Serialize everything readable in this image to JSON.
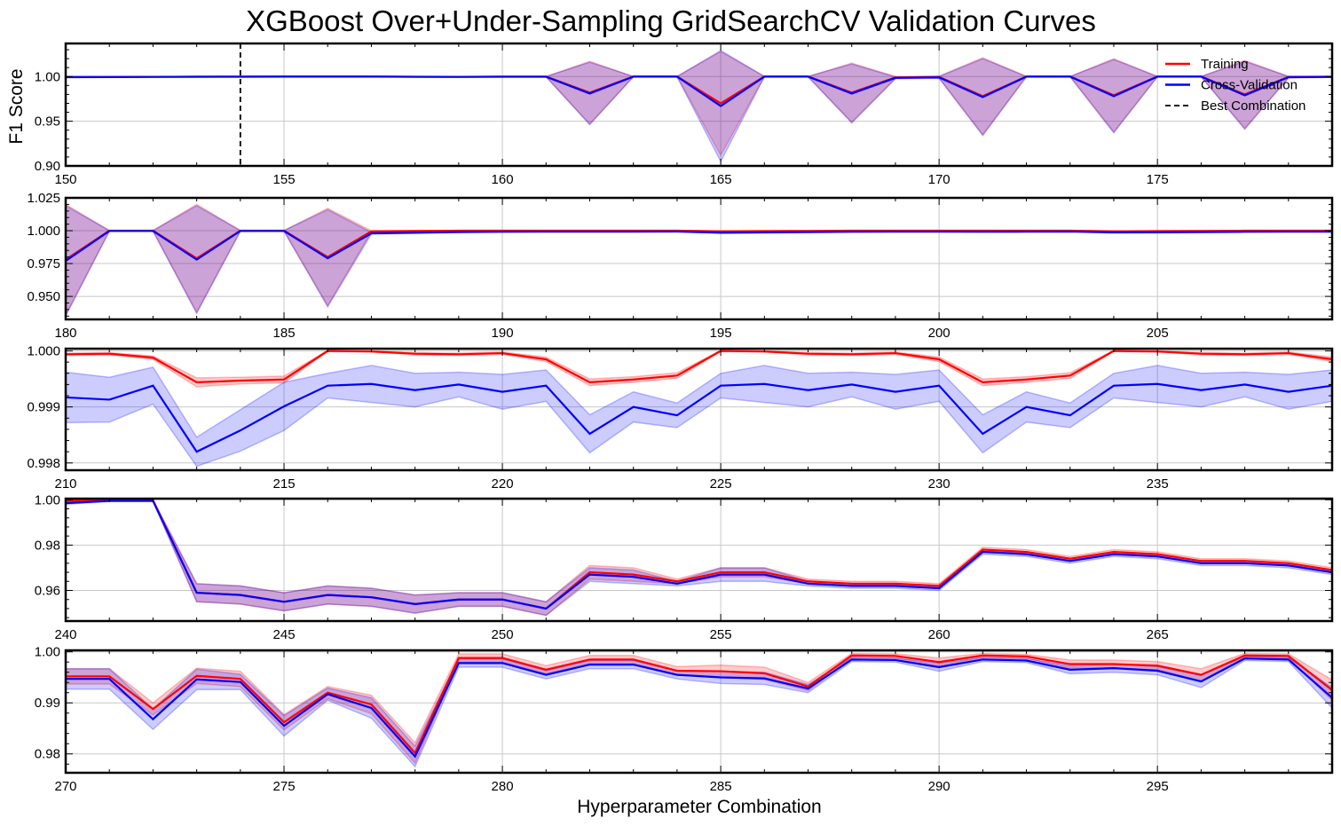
{
  "title": "XGBoost Over+Under-Sampling GridSearchCV Validation Curves",
  "xlabel": "Hyperparameter Combination",
  "ylabel": "F1 Score",
  "legend": [
    {
      "label": "Training",
      "color": "#ff0000",
      "style": "solid"
    },
    {
      "label": "Cross-Validation",
      "color": "#0000ff",
      "style": "solid"
    },
    {
      "label": "Best Combination",
      "color": "#000000",
      "style": "dashed"
    }
  ],
  "colors": {
    "train": "#ff0000",
    "cv": "#0000ff",
    "best": "#000000"
  },
  "chart_data": [
    {
      "type": "line",
      "xlim": [
        150,
        179
      ],
      "ylim": [
        0.9,
        1.037
      ],
      "xticks": [
        150,
        155,
        160,
        165,
        170,
        175
      ],
      "yticks": [
        0.9,
        0.95,
        1.0
      ],
      "ytick_labels": [
        "0.90",
        "0.95",
        "1.00"
      ],
      "best_combination": 154,
      "legend_position": "top-right",
      "x": [
        150,
        151,
        152,
        153,
        154,
        155,
        156,
        157,
        158,
        159,
        160,
        161,
        162,
        163,
        164,
        165,
        166,
        167,
        168,
        169,
        170,
        171,
        172,
        173,
        174,
        175,
        176,
        177,
        178,
        179
      ],
      "series": [
        {
          "name": "Training",
          "values": [
            0.9995,
            0.9996,
            0.9997,
            0.9998,
            0.9999,
            1.0,
            1.0,
            1.0,
            0.9998,
            0.9997,
            0.9999,
            0.9999,
            0.982,
            1.0,
            1.0,
            0.97,
            1.0,
            1.0,
            0.982,
            0.999,
            0.9995,
            0.978,
            1.0,
            1.0,
            0.979,
            1.0,
            1.0,
            0.98,
            0.9995,
            0.9998
          ],
          "std": [
            0.0002,
            0.0002,
            0.0002,
            0.0002,
            0.0002,
            0.0001,
            0.0001,
            0.0001,
            0.0002,
            0.0002,
            0.0001,
            0.0001,
            0.035,
            0.0001,
            0.0001,
            0.058,
            0.0001,
            0.0001,
            0.033,
            0.001,
            0.001,
            0.043,
            0.0001,
            0.0001,
            0.041,
            0.0001,
            0.0001,
            0.038,
            0.0008,
            0.0005
          ]
        },
        {
          "name": "Cross-Validation",
          "values": [
            0.9993,
            0.9994,
            0.9996,
            0.9998,
            0.9998,
            0.9999,
            0.9999,
            0.9999,
            0.9997,
            0.9996,
            0.9998,
            0.9998,
            0.981,
            0.9999,
            0.9999,
            0.967,
            0.9999,
            0.9999,
            0.981,
            0.9985,
            0.999,
            0.977,
            0.9999,
            0.9999,
            0.978,
            0.9999,
            0.9999,
            0.979,
            0.9993,
            0.9996
          ],
          "std": [
            0.0003,
            0.0003,
            0.0003,
            0.0003,
            0.0003,
            0.0002,
            0.0002,
            0.0002,
            0.0003,
            0.0003,
            0.0002,
            0.0002,
            0.035,
            0.0002,
            0.0002,
            0.062,
            0.0002,
            0.0002,
            0.033,
            0.001,
            0.001,
            0.043,
            0.0002,
            0.0002,
            0.041,
            0.0002,
            0.0002,
            0.038,
            0.0008,
            0.0005
          ]
        }
      ]
    },
    {
      "type": "line",
      "xlim": [
        180,
        209
      ],
      "ylim": [
        0.9325,
        1.025
      ],
      "xticks": [
        180,
        185,
        190,
        195,
        200,
        205
      ],
      "yticks": [
        0.95,
        0.975,
        1.0,
        1.025
      ],
      "ytick_labels": [
        "0.950",
        "0.975",
        "1.000",
        "1.025"
      ],
      "x": [
        180,
        181,
        182,
        183,
        184,
        185,
        186,
        187,
        188,
        189,
        190,
        191,
        192,
        193,
        194,
        195,
        196,
        197,
        198,
        199,
        200,
        201,
        202,
        203,
        204,
        205,
        206,
        207,
        208,
        209
      ],
      "series": [
        {
          "name": "Training",
          "values": [
            0.978,
            1.0,
            1.0,
            0.979,
            1.0,
            1.0,
            0.98,
            0.9995,
            0.9998,
            1.0,
            1.0,
            1.0,
            1.0,
            1.0,
            1.0,
            0.9995,
            0.9997,
            0.9998,
            1.0,
            1.0,
            1.0,
            1.0,
            1.0,
            1.0,
            0.9995,
            0.9997,
            0.9998,
            1.0,
            1.0,
            1.0
          ],
          "std": [
            0.042,
            0.0002,
            0.0002,
            0.041,
            0.0002,
            0.0002,
            0.037,
            0.0004,
            0.0003,
            0.0002,
            0.0002,
            0.0002,
            0.0002,
            0.0002,
            0.0002,
            0.0003,
            0.0003,
            0.0003,
            0.0002,
            0.0002,
            0.0002,
            0.0002,
            0.0002,
            0.0002,
            0.0003,
            0.0003,
            0.0003,
            0.0002,
            0.0002,
            0.0002
          ]
        },
        {
          "name": "Cross-Validation",
          "values": [
            0.977,
            0.9998,
            0.9998,
            0.978,
            0.9998,
            0.9998,
            0.979,
            0.998,
            0.9985,
            0.999,
            0.9992,
            0.9993,
            0.9993,
            0.9993,
            0.9994,
            0.9985,
            0.9987,
            0.999,
            0.9992,
            0.9993,
            0.9993,
            0.9992,
            0.9993,
            0.9994,
            0.9987,
            0.9988,
            0.999,
            0.9992,
            0.9993,
            0.9993
          ],
          "std": [
            0.042,
            0.0003,
            0.0003,
            0.041,
            0.0003,
            0.0003,
            0.037,
            0.0006,
            0.0005,
            0.0004,
            0.0004,
            0.0004,
            0.0004,
            0.0004,
            0.0004,
            0.0005,
            0.0005,
            0.0005,
            0.0004,
            0.0004,
            0.0004,
            0.0004,
            0.0004,
            0.0004,
            0.0005,
            0.0005,
            0.0005,
            0.0004,
            0.0004,
            0.0004
          ]
        }
      ]
    },
    {
      "type": "line",
      "xlim": [
        210,
        239
      ],
      "ylim": [
        0.99787,
        1.00004
      ],
      "xticks": [
        210,
        215,
        220,
        225,
        230,
        235
      ],
      "yticks": [
        0.998,
        0.999,
        1.0
      ],
      "ytick_labels": [
        "0.998",
        "0.999",
        "1.000"
      ],
      "x": [
        210,
        211,
        212,
        213,
        214,
        215,
        216,
        217,
        218,
        219,
        220,
        221,
        222,
        223,
        224,
        225,
        226,
        227,
        228,
        229,
        230,
        231,
        232,
        233,
        234,
        235,
        236,
        237,
        238,
        239
      ],
      "series": [
        {
          "name": "Training",
          "values": [
            0.99994,
            0.99995,
            0.99988,
            0.99944,
            0.99947,
            0.99949,
            1.0,
            0.99999,
            0.99995,
            0.99994,
            0.99996,
            0.99985,
            0.99944,
            0.99949,
            0.99956,
            1.0,
            0.99999,
            0.99995,
            0.99994,
            0.99996,
            0.99985,
            0.99944,
            0.99949,
            0.99956,
            1.0,
            0.99999,
            0.99995,
            0.99994,
            0.99996,
            0.99985
          ],
          "std": [
            2e-05,
            2e-05,
            3e-05,
            8e-05,
            6e-05,
            6e-05,
            1e-05,
            1e-05,
            2e-05,
            2e-05,
            2e-05,
            4e-05,
            6e-05,
            5e-05,
            5e-05,
            1e-05,
            1e-05,
            2e-05,
            2e-05,
            2e-05,
            4e-05,
            6e-05,
            5e-05,
            5e-05,
            1e-05,
            1e-05,
            2e-05,
            2e-05,
            2e-05,
            4e-05
          ]
        },
        {
          "name": "Cross-Validation",
          "values": [
            0.99917,
            0.99913,
            0.99938,
            0.9982,
            0.99858,
            0.99901,
            0.99938,
            0.99941,
            0.9993,
            0.9994,
            0.99927,
            0.99938,
            0.99852,
            0.999,
            0.99885,
            0.99938,
            0.99941,
            0.9993,
            0.9994,
            0.99927,
            0.99938,
            0.99852,
            0.999,
            0.99885,
            0.99938,
            0.99941,
            0.9993,
            0.9994,
            0.99927,
            0.99938
          ],
          "std": [
            0.00045,
            0.0004,
            0.00033,
            0.00026,
            0.00037,
            0.00043,
            0.00022,
            0.00033,
            0.0003,
            0.00022,
            0.00031,
            0.00028,
            0.00034,
            0.00027,
            0.00022,
            0.00022,
            0.00033,
            0.0003,
            0.00022,
            0.00031,
            0.00028,
            0.00034,
            0.00027,
            0.00022,
            0.00022,
            0.00033,
            0.0003,
            0.00022,
            0.00031,
            0.00028
          ]
        }
      ]
    },
    {
      "type": "line",
      "xlim": [
        240,
        269
      ],
      "ylim": [
        0.9465,
        1.0005
      ],
      "xticks": [
        240,
        245,
        250,
        255,
        260,
        265
      ],
      "yticks": [
        0.96,
        0.98,
        1.0
      ],
      "ytick_labels": [
        "0.96",
        "0.98",
        "1.00"
      ],
      "x": [
        240,
        241,
        242,
        243,
        244,
        245,
        246,
        247,
        248,
        249,
        250,
        251,
        252,
        253,
        254,
        255,
        256,
        257,
        258,
        259,
        260,
        261,
        262,
        263,
        264,
        265,
        266,
        267,
        268,
        269
      ],
      "series": [
        {
          "name": "Training",
          "values": [
            0.9995,
            0.9998,
            0.9998,
            0.959,
            0.958,
            0.955,
            0.958,
            0.957,
            0.954,
            0.956,
            0.956,
            0.952,
            0.968,
            0.967,
            0.964,
            0.968,
            0.968,
            0.964,
            0.963,
            0.963,
            0.962,
            0.978,
            0.977,
            0.974,
            0.977,
            0.976,
            0.973,
            0.973,
            0.972,
            0.969
          ],
          "std": [
            0.0003,
            0.0002,
            0.0002,
            0.004,
            0.004,
            0.004,
            0.004,
            0.004,
            0.004,
            0.003,
            0.003,
            0.003,
            0.003,
            0.003,
            0.001,
            0.002,
            0.002,
            0.001,
            0.001,
            0.001,
            0.001,
            0.001,
            0.001,
            0.001,
            0.001,
            0.001,
            0.001,
            0.001,
            0.001,
            0.001
          ]
        },
        {
          "name": "Cross-Validation",
          "values": [
            0.9985,
            0.9995,
            0.9995,
            0.959,
            0.958,
            0.955,
            0.958,
            0.957,
            0.954,
            0.956,
            0.956,
            0.952,
            0.967,
            0.966,
            0.963,
            0.967,
            0.967,
            0.963,
            0.962,
            0.962,
            0.961,
            0.977,
            0.976,
            0.973,
            0.976,
            0.975,
            0.972,
            0.972,
            0.971,
            0.968
          ],
          "std": [
            0.0005,
            0.0003,
            0.0003,
            0.004,
            0.004,
            0.004,
            0.004,
            0.004,
            0.004,
            0.003,
            0.003,
            0.003,
            0.003,
            0.003,
            0.001,
            0.003,
            0.003,
            0.001,
            0.001,
            0.001,
            0.001,
            0.001,
            0.001,
            0.001,
            0.001,
            0.001,
            0.001,
            0.001,
            0.001,
            0.001
          ]
        }
      ]
    },
    {
      "type": "line",
      "xlim": [
        270,
        299
      ],
      "ylim": [
        0.9763,
        1.0003
      ],
      "xticks": [
        270,
        275,
        280,
        285,
        290,
        295
      ],
      "yticks": [
        0.98,
        0.99,
        1.0
      ],
      "ytick_labels": [
        "0.98",
        "0.99",
        "1.00"
      ],
      "x": [
        270,
        271,
        272,
        273,
        274,
        275,
        276,
        277,
        278,
        279,
        280,
        281,
        282,
        283,
        284,
        285,
        286,
        287,
        288,
        289,
        290,
        291,
        292,
        293,
        294,
        295,
        296,
        297,
        298,
        299
      ],
      "series": [
        {
          "name": "Training",
          "values": [
            0.9952,
            0.9952,
            0.9888,
            0.9953,
            0.9947,
            0.9862,
            0.992,
            0.9897,
            0.9802,
            0.9988,
            0.9988,
            0.9965,
            0.9985,
            0.9985,
            0.9963,
            0.9962,
            0.9958,
            0.9932,
            0.9993,
            0.9992,
            0.998,
            0.9993,
            0.9991,
            0.9976,
            0.9976,
            0.9973,
            0.9955,
            0.9993,
            0.9992,
            0.9925
          ],
          "std": [
            0.0015,
            0.0015,
            0.0012,
            0.0015,
            0.0015,
            0.0015,
            0.0012,
            0.0018,
            0.002,
            0.0008,
            0.0008,
            0.0008,
            0.0008,
            0.0008,
            0.0008,
            0.0012,
            0.0012,
            0.0008,
            0.0004,
            0.0004,
            0.0008,
            0.0004,
            0.0004,
            0.0008,
            0.0008,
            0.0008,
            0.0012,
            0.0004,
            0.0004,
            0.002
          ]
        },
        {
          "name": "Cross-Validation",
          "values": [
            0.9947,
            0.9947,
            0.9868,
            0.9946,
            0.9941,
            0.9855,
            0.9917,
            0.989,
            0.9795,
            0.9978,
            0.9978,
            0.9955,
            0.9975,
            0.9975,
            0.9955,
            0.995,
            0.9948,
            0.9928,
            0.9985,
            0.9984,
            0.997,
            0.9985,
            0.9983,
            0.9965,
            0.9968,
            0.9963,
            0.9942,
            0.9987,
            0.9985,
            0.991
          ],
          "std": [
            0.002,
            0.002,
            0.002,
            0.002,
            0.0015,
            0.002,
            0.0012,
            0.002,
            0.002,
            0.0008,
            0.0008,
            0.0008,
            0.0008,
            0.0008,
            0.0008,
            0.0012,
            0.0012,
            0.0008,
            0.0004,
            0.0004,
            0.0008,
            0.0004,
            0.0004,
            0.0008,
            0.0008,
            0.0008,
            0.0012,
            0.0004,
            0.0004,
            0.002
          ]
        }
      ]
    }
  ]
}
